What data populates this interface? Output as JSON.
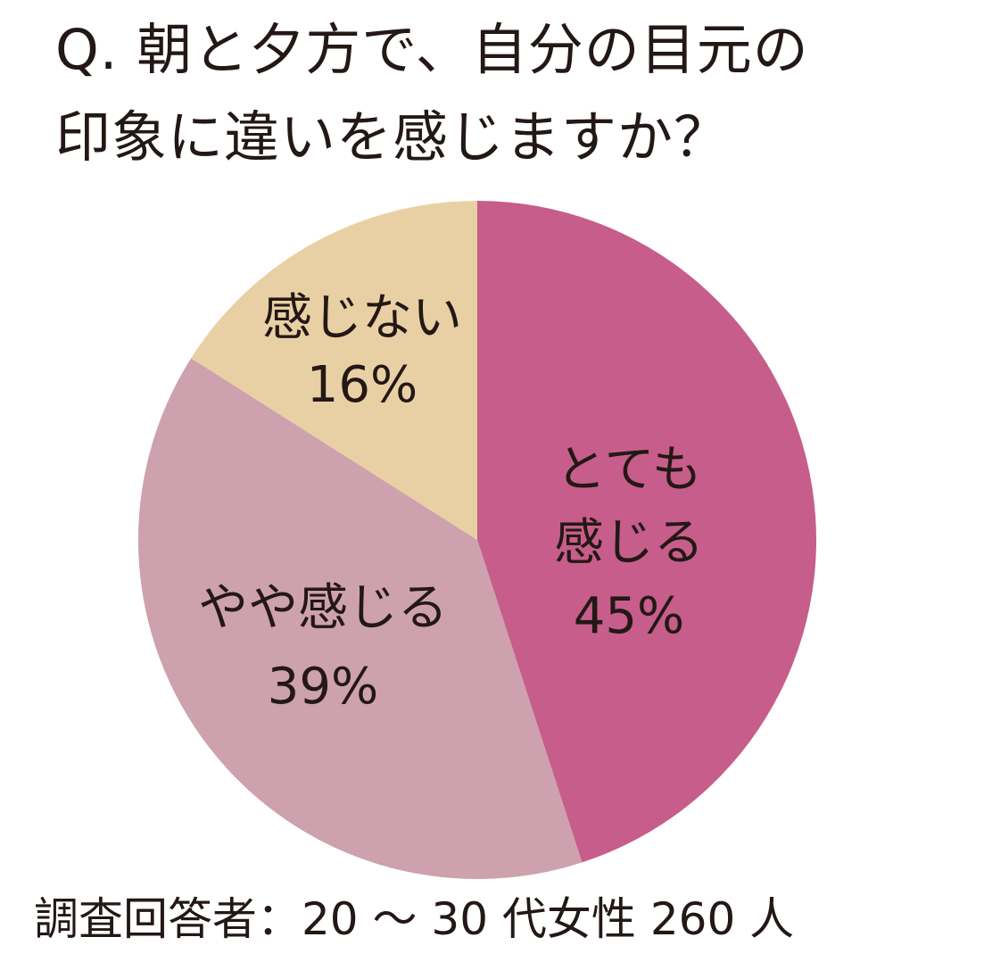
{
  "title": {
    "line1": "Q. 朝と夕方で、自分の目元の",
    "line2": "印象に違いを感じますか？"
  },
  "chart_data": {
    "type": "pie",
    "categories": [
      "とても感じる",
      "やや感じる",
      "感じない"
    ],
    "values": [
      45,
      39,
      16
    ],
    "unit": "%",
    "colors": [
      "#c75d8b",
      "#cda1ad",
      "#e9d0a4"
    ],
    "slices": [
      {
        "label_lines": [
          "とても",
          "感じる"
        ],
        "percent": "45%",
        "value": 45,
        "color": "#c75d8b"
      },
      {
        "label_lines": [
          "やや感じる"
        ],
        "percent": "39%",
        "value": 39,
        "color": "#cda1ad"
      },
      {
        "label_lines": [
          "感じない"
        ],
        "percent": "16%",
        "value": 16,
        "color": "#e9d0a4"
      }
    ],
    "start": "12 o'clock",
    "direction": "clockwise",
    "legend": "none"
  },
  "footnote": "調査回答者：20 ～ 30 代女性 260 人"
}
